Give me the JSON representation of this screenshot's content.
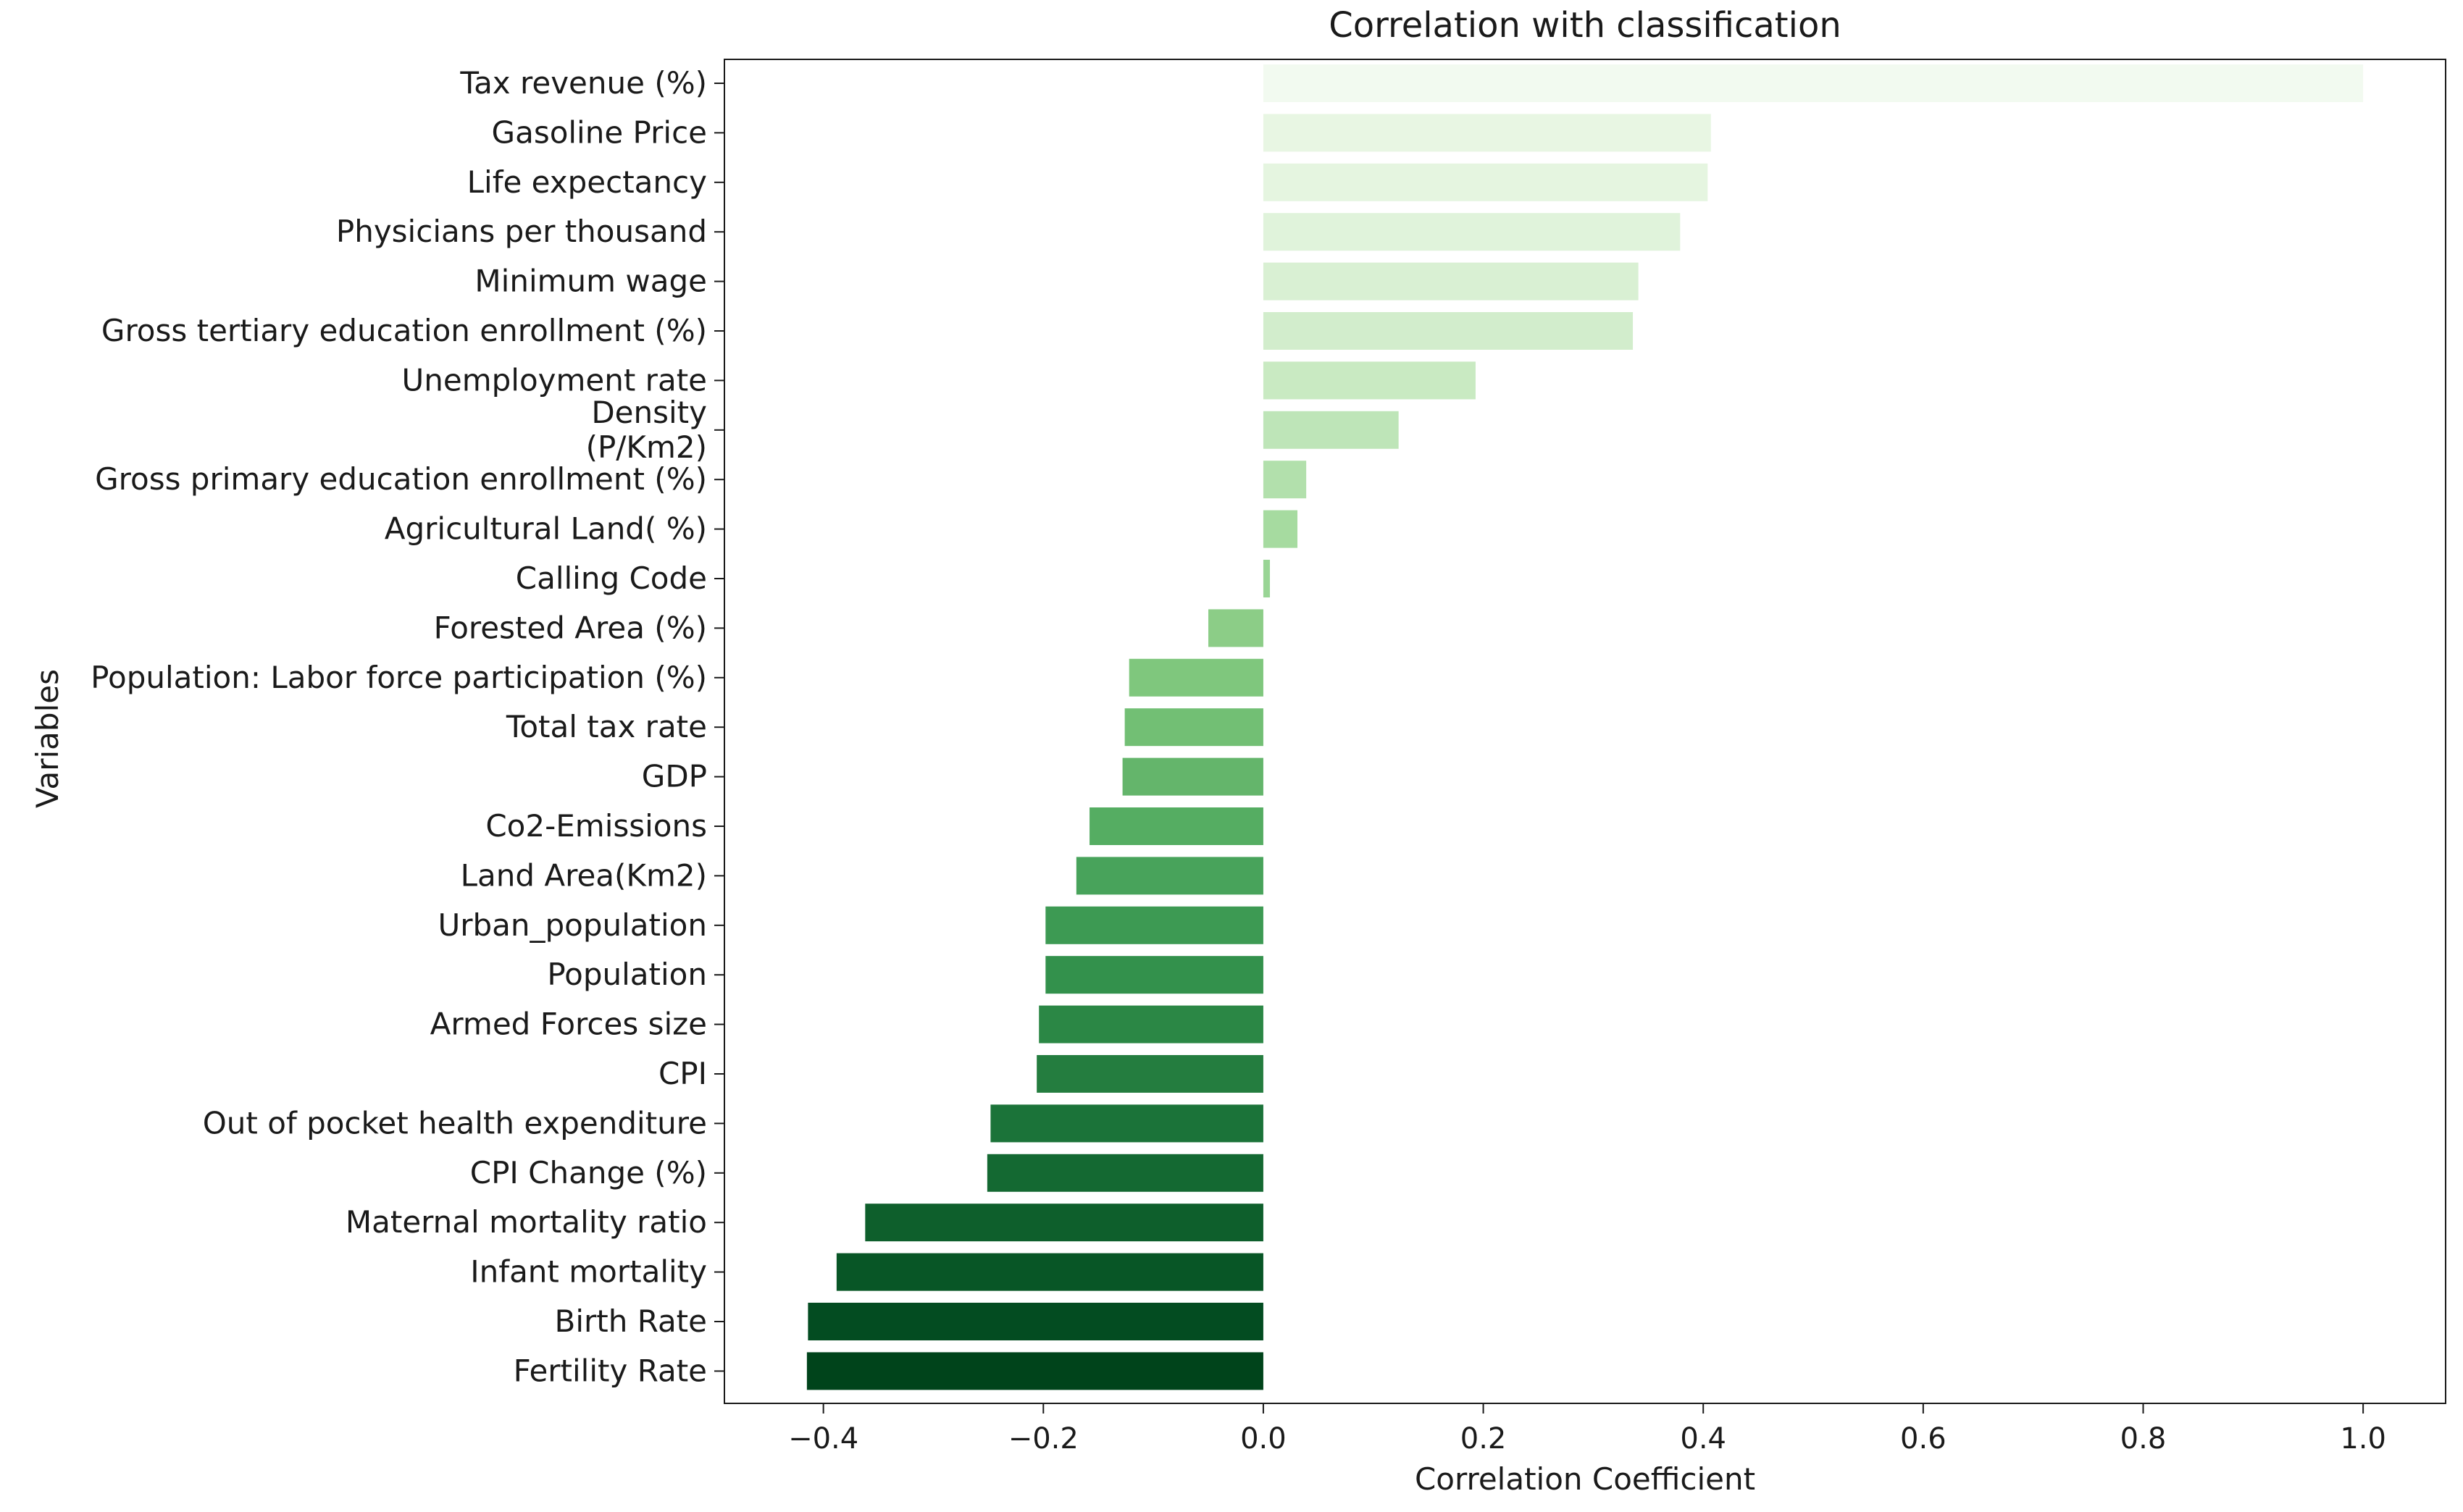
{
  "chart_data": {
    "type": "bar",
    "orientation": "horizontal",
    "title": "Correlation with classification",
    "xlabel": "Correlation Coefficient",
    "ylabel": "Variables",
    "xlim": [
      -0.49,
      1.075
    ],
    "xticks": [
      -0.4,
      -0.2,
      0.0,
      0.2,
      0.4,
      0.6,
      0.8,
      1.0
    ],
    "xtick_labels": [
      "−0.4",
      "−0.2",
      "0.0",
      "0.2",
      "0.4",
      "0.6",
      "0.8",
      "1.0"
    ],
    "grid": false,
    "colormap": "Greens",
    "categories": [
      "Tax revenue (%)",
      "Gasoline Price",
      "Life expectancy",
      "Physicians per thousand",
      "Minimum wage",
      "Gross tertiary education enrollment (%)",
      "Unemployment rate",
      "Density\n(P/Km2)",
      "Gross primary education enrollment (%)",
      "Agricultural Land( %)",
      "Calling Code",
      "Forested Area (%)",
      "Population: Labor force participation (%)",
      "Total tax rate",
      "GDP",
      "Co2-Emissions",
      "Land Area(Km2)",
      "Urban_population",
      "Population",
      "Armed Forces size",
      "CPI",
      "Out of pocket health expenditure",
      "CPI Change (%)",
      "Maternal mortality ratio",
      "Infant mortality",
      "Birth Rate",
      "Fertility Rate"
    ],
    "values": [
      1.0,
      0.407,
      0.404,
      0.379,
      0.341,
      0.336,
      0.193,
      0.123,
      0.039,
      0.031,
      0.006,
      -0.05,
      -0.122,
      -0.126,
      -0.128,
      -0.158,
      -0.17,
      -0.198,
      -0.198,
      -0.204,
      -0.206,
      -0.248,
      -0.251,
      -0.362,
      -0.388,
      -0.414,
      -0.415
    ],
    "colors": [
      "#f2faf0",
      "#e8f6e3",
      "#e5f5e0",
      "#e0f3db",
      "#d9f0d3",
      "#d2edcc",
      "#c9eac2",
      "#bee5b8",
      "#b2e0ac",
      "#a6dba0",
      "#99d595",
      "#8ccd87",
      "#7fc77d",
      "#72bf74",
      "#64b56b",
      "#55ad62",
      "#48a35b",
      "#3d9a53",
      "#33914c",
      "#2b8745",
      "#247d3f",
      "#1b7339",
      "#146932",
      "#0e5f2c",
      "#085626",
      "#034c21",
      "#00441b"
    ]
  }
}
